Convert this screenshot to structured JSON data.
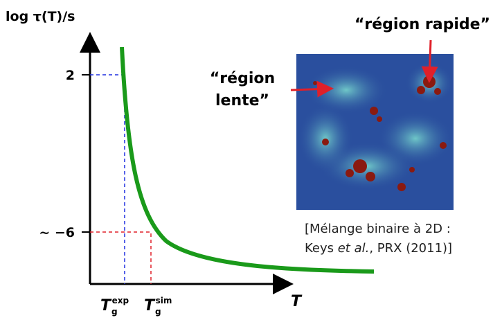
{
  "y_axis": {
    "label": "log τ(T)/s",
    "ticks": [
      "2",
      "~ −6"
    ]
  },
  "x_axis": {
    "label": "T",
    "ticks": [
      {
        "symbol": "T",
        "subscript": "g",
        "superscript": "exp"
      },
      {
        "symbol": "T",
        "subscript": "g",
        "superscript": "sim"
      }
    ]
  },
  "annotations": {
    "fast": "“région rapide”",
    "slow": [
      "“région",
      "lente”"
    ]
  },
  "caption": {
    "line1": "[Mélange binaire à 2D :",
    "line2": [
      "Keys ",
      "et al.",
      ", PRX (2011)]"
    ]
  }
}
